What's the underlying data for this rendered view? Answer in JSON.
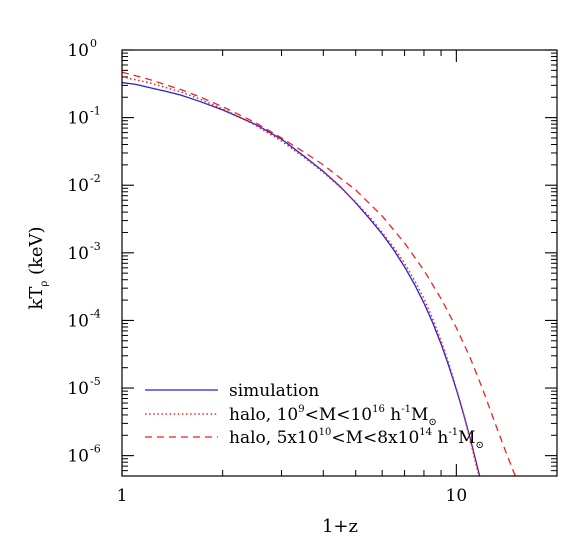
{
  "chart_data": {
    "type": "line",
    "title": "",
    "xlabel": "1+z",
    "ylabel": "kT",
    "ylabel_subscript": "ρ",
    "ylabel_unit": "(keV)",
    "xscale": "log",
    "yscale": "log",
    "xlim": [
      1,
      20
    ],
    "ylim": [
      5e-07,
      1
    ],
    "x_ticks": [
      {
        "value": 1,
        "label": "1"
      },
      {
        "value": 10,
        "label": "10"
      }
    ],
    "y_ticks": [
      {
        "value": 1,
        "base": "10",
        "exp": "0"
      },
      {
        "value": 0.1,
        "base": "10",
        "exp": "-1"
      },
      {
        "value": 0.01,
        "base": "10",
        "exp": "-2"
      },
      {
        "value": 0.001,
        "base": "10",
        "exp": "-3"
      },
      {
        "value": 0.0001,
        "base": "10",
        "exp": "-4"
      },
      {
        "value": 1e-05,
        "base": "10",
        "exp": "-5"
      },
      {
        "value": 1e-06,
        "base": "10",
        "exp": "-6"
      }
    ],
    "grid": false,
    "legend_position": "bottom-left",
    "series": [
      {
        "name": "simulation",
        "color": "#2222dd",
        "style": "solid",
        "points": [
          [
            1.0,
            0.33
          ],
          [
            1.1,
            0.31
          ],
          [
            1.2,
            0.28
          ],
          [
            1.35,
            0.245
          ],
          [
            1.5,
            0.215
          ],
          [
            1.7,
            0.175
          ],
          [
            2.0,
            0.13
          ],
          [
            2.5,
            0.08
          ],
          [
            3.0,
            0.048
          ],
          [
            3.5,
            0.027
          ],
          [
            4.0,
            0.016
          ],
          [
            4.5,
            0.0095
          ],
          [
            5.0,
            0.0055
          ],
          [
            5.5,
            0.0032
          ],
          [
            6.0,
            0.0019
          ],
          [
            6.5,
            0.0011
          ],
          [
            7.0,
            0.00062
          ],
          [
            7.5,
            0.00034
          ],
          [
            8.0,
            0.00018
          ],
          [
            8.5,
            9.2e-05
          ],
          [
            9.0,
            4.5e-05
          ],
          [
            9.5,
            2.1e-05
          ],
          [
            10.0,
            9.5e-06
          ],
          [
            10.5,
            4.2e-06
          ],
          [
            11.0,
            1.8e-06
          ],
          [
            11.5,
            7.5e-07
          ],
          [
            11.8,
            4.5e-07
          ]
        ]
      },
      {
        "name_prefix": "halo, 10",
        "name_sup1": "9",
        "name_mid": "<M<10",
        "name_sup2": "16",
        "name_unit": " h",
        "name_sup3": "-1",
        "name_end": "M",
        "name_sub": "⊙",
        "color": "#ee2222",
        "style": "dotted",
        "points": [
          [
            1.0,
            0.4
          ],
          [
            1.2,
            0.33
          ],
          [
            1.5,
            0.24
          ],
          [
            1.7,
            0.19
          ],
          [
            2.0,
            0.135
          ],
          [
            2.5,
            0.078
          ],
          [
            3.0,
            0.045
          ],
          [
            3.5,
            0.026
          ],
          [
            4.0,
            0.0155
          ],
          [
            4.5,
            0.0093
          ],
          [
            5.0,
            0.0056
          ],
          [
            5.5,
            0.0034
          ],
          [
            6.0,
            0.002
          ],
          [
            6.5,
            0.0012
          ],
          [
            7.0,
            0.0007
          ],
          [
            7.5,
            0.00039
          ],
          [
            8.0,
            0.00021
          ],
          [
            8.5,
            0.000105
          ],
          [
            9.0,
            5e-05
          ],
          [
            9.5,
            2.3e-05
          ],
          [
            10.0,
            9.8e-06
          ],
          [
            10.5,
            4.2e-06
          ],
          [
            11.0,
            1.7e-06
          ],
          [
            11.5,
            6.8e-07
          ],
          [
            11.8,
            4.2e-07
          ]
        ]
      },
      {
        "name_prefix": "halo, 5x10",
        "name_sup1": "10",
        "name_mid": "<M<8x10",
        "name_sup2": "14",
        "name_unit": " h",
        "name_sup3": "-1",
        "name_end": "M",
        "name_sub": "⊙",
        "color": "#ee2222",
        "style": "dashed",
        "points": [
          [
            1.0,
            0.47
          ],
          [
            1.2,
            0.37
          ],
          [
            1.5,
            0.26
          ],
          [
            1.7,
            0.205
          ],
          [
            2.0,
            0.145
          ],
          [
            2.5,
            0.085
          ],
          [
            3.0,
            0.05
          ],
          [
            3.5,
            0.031
          ],
          [
            4.0,
            0.02
          ],
          [
            5.0,
            0.0085
          ],
          [
            6.0,
            0.0035
          ],
          [
            7.0,
            0.0014
          ],
          [
            8.0,
            0.00055
          ],
          [
            9.0,
            0.00021
          ],
          [
            10.0,
            7.8e-05
          ],
          [
            11.0,
            2.8e-05
          ],
          [
            12.0,
            9.5e-06
          ],
          [
            13.0,
            3.2e-06
          ],
          [
            14.0,
            1.2e-06
          ],
          [
            15.0,
            5e-07
          ]
        ]
      }
    ]
  }
}
